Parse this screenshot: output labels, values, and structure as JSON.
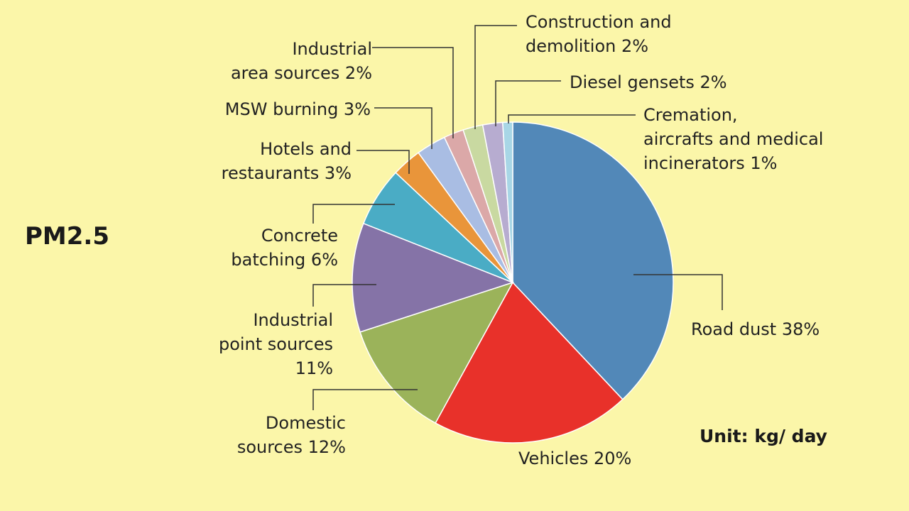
{
  "chart_data": {
    "type": "pie",
    "title": "PM2.5",
    "unit_note": "Unit: kg/ day",
    "slices": [
      {
        "key": "road_dust",
        "label_lines": [
          "Road dust 38%"
        ],
        "value": 38,
        "color": "#5288b8"
      },
      {
        "key": "vehicles",
        "label_lines": [
          "Vehicles 20%"
        ],
        "value": 20,
        "color": "#e8312a"
      },
      {
        "key": "domestic",
        "label_lines": [
          "Domestic",
          "sources 12%"
        ],
        "value": 12,
        "color": "#9bb35a"
      },
      {
        "key": "industrial_point",
        "label_lines": [
          "Industrial",
          "point sources",
          "11%"
        ],
        "value": 11,
        "color": "#8573a7"
      },
      {
        "key": "concrete",
        "label_lines": [
          "Concrete",
          "batching 6%"
        ],
        "value": 6,
        "color": "#4aacc5"
      },
      {
        "key": "hotels",
        "label_lines": [
          "Hotels and",
          "restaurants 3%"
        ],
        "value": 3,
        "color": "#e9953a"
      },
      {
        "key": "msw",
        "label_lines": [
          "MSW burning 3%"
        ],
        "value": 3,
        "color": "#a9bde3"
      },
      {
        "key": "industrial_area",
        "label_lines": [
          "Industrial",
          "area sources 2%"
        ],
        "value": 2,
        "color": "#dba8a8"
      },
      {
        "key": "construction",
        "label_lines": [
          "Construction and",
          "demolition 2%"
        ],
        "value": 2,
        "color": "#c9d9a1"
      },
      {
        "key": "diesel",
        "label_lines": [
          "Diesel gensets 2%"
        ],
        "value": 2,
        "color": "#b7acd0"
      },
      {
        "key": "cremation",
        "label_lines": [
          "Cremation,",
          "aircrafts and medical",
          "incinerators 1%"
        ],
        "value": 1,
        "color": "#a8d6e6"
      }
    ]
  }
}
